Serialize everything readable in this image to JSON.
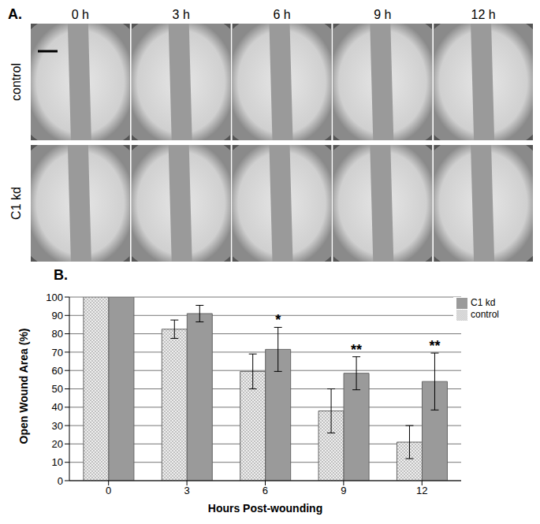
{
  "panel_a": {
    "label": "A.",
    "columns": [
      "0 h",
      "3 h",
      "6 h",
      "9 h",
      "12 h"
    ],
    "rows": [
      "control",
      "C1 kd"
    ]
  },
  "panel_b": {
    "label": "B."
  },
  "chart_data": {
    "type": "bar",
    "x_label": "Hours Post-wounding",
    "y_label": "Open Wound Area (%)",
    "categories": [
      "0",
      "3",
      "6",
      "9",
      "12"
    ],
    "series": [
      {
        "name": "control",
        "color": "#e0e0e0",
        "values": [
          100,
          82.5,
          59.5,
          38,
          21
        ],
        "errors": [
          0,
          5,
          9.5,
          12,
          9
        ]
      },
      {
        "name": "C1 kd",
        "color": "#9a9a9a",
        "values": [
          100,
          91,
          71.5,
          58.5,
          54
        ],
        "errors": [
          0,
          4.5,
          12,
          9,
          15.5
        ]
      }
    ],
    "annotations": [
      {
        "x": "6",
        "series": "C1 kd",
        "text": "*"
      },
      {
        "x": "9",
        "series": "C1 kd",
        "text": "**"
      },
      {
        "x": "12",
        "series": "C1 kd",
        "text": "**"
      }
    ],
    "ylim": [
      0,
      100
    ],
    "yticks": [
      0,
      10,
      20,
      30,
      40,
      50,
      60,
      70,
      80,
      90,
      100
    ],
    "grid": true,
    "legend": "upper right"
  }
}
